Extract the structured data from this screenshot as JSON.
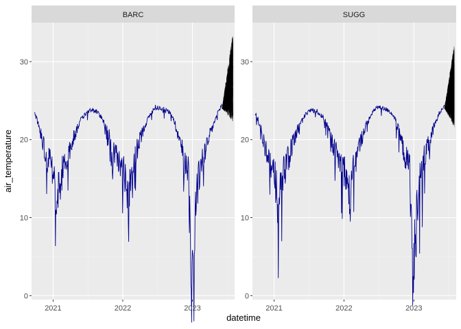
{
  "chart_data": {
    "type": "line",
    "xlabel": "datetime",
    "ylabel": "air_temperature",
    "x_tick_labels": [
      "2021",
      "2022",
      "2023"
    ],
    "x_tick_values": [
      "2021-01-01",
      "2022-01-01",
      "2023-01-01"
    ],
    "x_range": [
      "2020-09-10",
      "2023-08-10"
    ],
    "y_ticks": [
      0,
      10,
      20,
      30
    ],
    "y_tick_labels": [
      "0",
      "10",
      "20",
      "30"
    ],
    "ylim": [
      -0.5,
      35
    ],
    "grid": true,
    "colors": {
      "panel_bg": "#ebebeb",
      "grid_major": "#ffffff",
      "strip_bg": "#d9d9d9",
      "observed": "#00008b",
      "forecast": "#000000"
    },
    "panels": [
      {
        "site": "BARC",
        "observed": {
          "color": "#00008b",
          "t_range": [
            "2020-09-25",
            "2023-06-05"
          ],
          "points": [
            [
              "2020-09-25",
              23.4
            ],
            [
              "2020-10-10",
              22.5
            ],
            [
              "2020-11-01",
              20.5
            ],
            [
              "2020-12-01",
              17.5
            ],
            [
              "2021-01-01",
              16.0
            ],
            [
              "2021-01-20",
              12.0
            ],
            [
              "2021-02-15",
              15.5
            ],
            [
              "2021-03-15",
              17.5
            ],
            [
              "2021-04-15",
              20.0
            ],
            [
              "2021-05-15",
              22.0
            ],
            [
              "2021-06-15",
              23.2
            ],
            [
              "2021-07-15",
              23.8
            ],
            [
              "2021-08-15",
              23.6
            ],
            [
              "2021-09-15",
              22.8
            ],
            [
              "2021-10-15",
              21.0
            ],
            [
              "2021-11-15",
              18.5
            ],
            [
              "2021-12-15",
              17.0
            ],
            [
              "2022-01-10",
              15.8
            ],
            [
              "2022-02-01",
              12.0
            ],
            [
              "2022-02-20",
              16.0
            ],
            [
              "2022-03-20",
              19.0
            ],
            [
              "2022-04-20",
              21.5
            ],
            [
              "2022-05-20",
              23.0
            ],
            [
              "2022-06-20",
              24.2
            ],
            [
              "2022-07-20",
              24.0
            ],
            [
              "2022-08-20",
              23.8
            ],
            [
              "2022-09-20",
              23.0
            ],
            [
              "2022-10-20",
              20.5
            ],
            [
              "2022-11-20",
              17.5
            ],
            [
              "2022-12-10",
              16.5
            ],
            [
              "2022-12-28",
              1.0
            ],
            [
              "2023-01-20",
              12.5
            ],
            [
              "2023-02-15",
              17.0
            ],
            [
              "2023-03-15",
              19.0
            ],
            [
              "2023-04-15",
              21.5
            ],
            [
              "2023-05-15",
              23.5
            ],
            [
              "2023-06-05",
              24.5
            ]
          ]
        },
        "forecast": {
          "color": "#000000",
          "t_range": [
            "2023-06-05",
            "2023-08-01"
          ],
          "start": 24.0,
          "end": 28.0,
          "low_end": 22.0,
          "high_end": 33.5
        }
      },
      {
        "site": "SUGG",
        "observed": {
          "color": "#00008b",
          "t_range": [
            "2020-09-25",
            "2023-06-10"
          ],
          "points": [
            [
              "2020-09-25",
              23.3
            ],
            [
              "2020-10-10",
              22.5
            ],
            [
              "2020-11-01",
              20.5
            ],
            [
              "2020-12-01",
              17.5
            ],
            [
              "2021-01-01",
              16.0
            ],
            [
              "2021-01-20",
              12.0
            ],
            [
              "2021-02-15",
              15.5
            ],
            [
              "2021-03-15",
              17.5
            ],
            [
              "2021-04-15",
              20.0
            ],
            [
              "2021-05-15",
              22.0
            ],
            [
              "2021-06-15",
              23.2
            ],
            [
              "2021-07-15",
              23.8
            ],
            [
              "2021-08-15",
              23.6
            ],
            [
              "2021-09-15",
              22.8
            ],
            [
              "2021-10-15",
              21.0
            ],
            [
              "2021-11-15",
              18.5
            ],
            [
              "2021-12-15",
              17.0
            ],
            [
              "2022-01-10",
              15.8
            ],
            [
              "2022-02-01",
              12.0
            ],
            [
              "2022-02-20",
              16.0
            ],
            [
              "2022-03-20",
              19.0
            ],
            [
              "2022-04-20",
              21.5
            ],
            [
              "2022-05-20",
              23.0
            ],
            [
              "2022-06-20",
              24.2
            ],
            [
              "2022-07-20",
              24.0
            ],
            [
              "2022-08-20",
              23.8
            ],
            [
              "2022-09-20",
              23.0
            ],
            [
              "2022-10-20",
              20.5
            ],
            [
              "2022-11-20",
              17.5
            ],
            [
              "2022-12-10",
              16.5
            ],
            [
              "2022-12-28",
              1.0
            ],
            [
              "2023-01-20",
              12.5
            ],
            [
              "2023-02-15",
              17.0
            ],
            [
              "2023-03-15",
              19.0
            ],
            [
              "2023-04-15",
              21.5
            ],
            [
              "2023-05-15",
              23.5
            ],
            [
              "2023-06-10",
              24.5
            ]
          ]
        },
        "forecast": {
          "color": "#000000",
          "t_range": [
            "2023-06-10",
            "2023-08-01"
          ],
          "start": 24.0,
          "end": 27.0,
          "low_end": 21.5,
          "high_end": 32.5
        }
      }
    ]
  }
}
